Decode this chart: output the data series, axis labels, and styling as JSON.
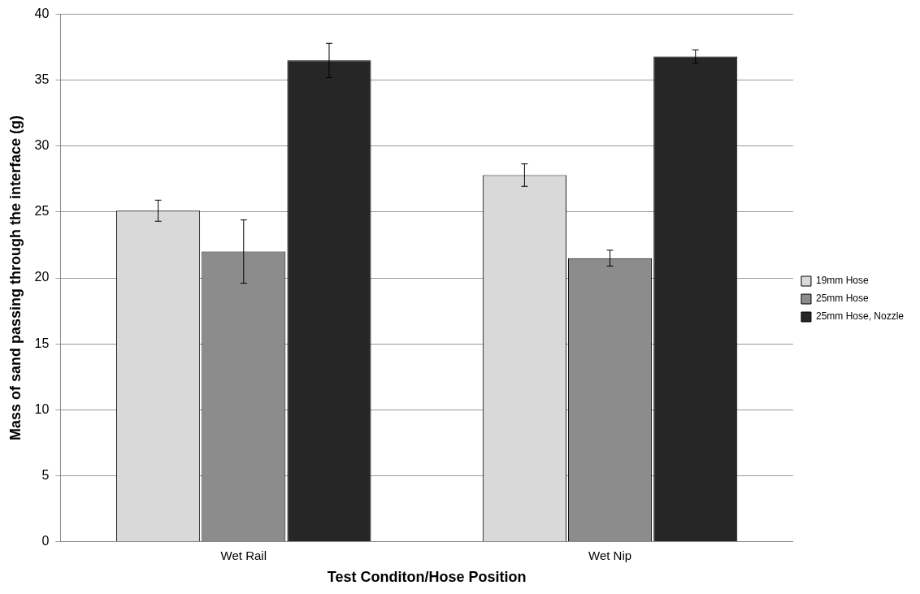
{
  "chart_data": {
    "type": "bar",
    "xlabel": "Test Conditon/Hose Position",
    "ylabel": "Mass of sand passing through the interface (g)",
    "categories": [
      "Wet Rail",
      "Wet Nip"
    ],
    "series": [
      {
        "name": "19mm Hose",
        "color": "#d9d9d9",
        "values": [
          25.1,
          27.8
        ],
        "errors": [
          0.8,
          0.85
        ]
      },
      {
        "name": "25mm Hose",
        "color": "#8c8c8c",
        "values": [
          22.0,
          21.5
        ],
        "errors": [
          2.4,
          0.6
        ]
      },
      {
        "name": "25mm Hose, Nozzle",
        "color": "#262626",
        "values": [
          36.5,
          36.8
        ],
        "errors": [
          1.3,
          0.5
        ]
      }
    ],
    "ylim": [
      0,
      40
    ],
    "yticks": [
      0,
      5,
      10,
      15,
      20,
      25,
      30,
      35,
      40
    ],
    "grid": "y",
    "legend": "right"
  }
}
